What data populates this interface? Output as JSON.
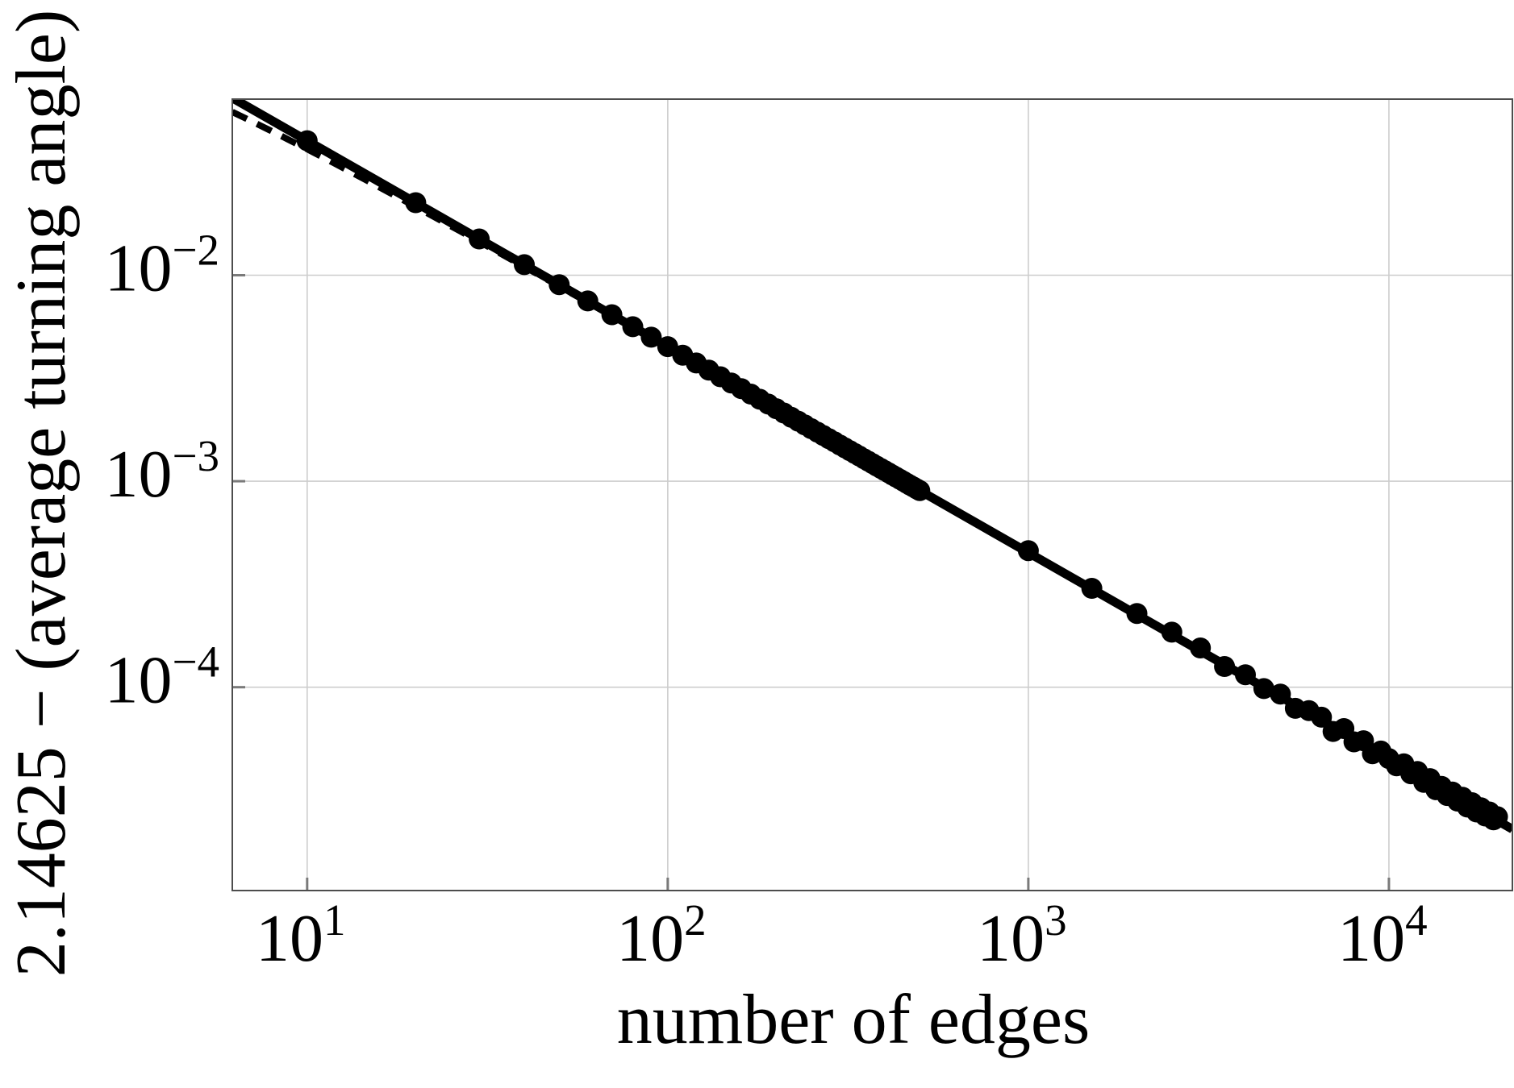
{
  "figure": {
    "title": "",
    "background": "#ffffff"
  },
  "chart_data": {
    "type": "scatter",
    "xscale": "log",
    "yscale": "log",
    "xlabel": "number of edges",
    "ylabel": "2.14625 − (average turning angle)",
    "xlim": [
      6.2,
      22000
    ],
    "ylim": [
      1.03e-05,
      0.0716
    ],
    "grid": true,
    "legend": "none",
    "colors": {
      "points": "#000000",
      "solid_line": "#000000",
      "dashed_line": "#000000",
      "grid": "#cdcdcd",
      "axis_frame": "#4d4d4d",
      "tick": "#7a7a7a",
      "tick_label": "#000000"
    },
    "xticks": [
      {
        "value": 10,
        "base": "10",
        "exp": "1"
      },
      {
        "value": 100,
        "base": "10",
        "exp": "2"
      },
      {
        "value": 1000,
        "base": "10",
        "exp": "3"
      },
      {
        "value": 10000,
        "base": "10",
        "exp": "4"
      }
    ],
    "yticks": [
      {
        "value": 0.01,
        "base": "10",
        "exp": "−2"
      },
      {
        "value": 0.001,
        "base": "10",
        "exp": "−3"
      },
      {
        "value": 0.0001,
        "base": "10",
        "exp": "−4"
      }
    ],
    "lines": {
      "fit": {
        "style": "solid",
        "coefficient": 0.45,
        "exponent": -1,
        "width": 11
      },
      "reference": {
        "style": "dashed",
        "coefficient": 0.45,
        "exponent": -1,
        "finite_size_correction": -0.9,
        "width": 8,
        "dash": [
          20,
          14
        ]
      }
    },
    "points": [
      [
        10,
        0.045
      ],
      [
        20,
        0.0225
      ],
      [
        30,
        0.015
      ],
      [
        40,
        0.01125
      ],
      [
        50,
        0.009
      ],
      [
        60,
        0.0075
      ],
      [
        70,
        0.006429
      ],
      [
        80,
        0.005625
      ],
      [
        90,
        0.005
      ],
      [
        100,
        0.0045
      ],
      [
        110,
        0.004091
      ],
      [
        120,
        0.00375
      ],
      [
        130,
        0.003462
      ],
      [
        140,
        0.003214
      ],
      [
        150,
        0.003
      ],
      [
        160,
        0.002813
      ],
      [
        170,
        0.002647
      ],
      [
        180,
        0.0025
      ],
      [
        190,
        0.002368
      ],
      [
        200,
        0.00225
      ],
      [
        210,
        0.002143
      ],
      [
        220,
        0.002045
      ],
      [
        230,
        0.001957
      ],
      [
        240,
        0.001875
      ],
      [
        250,
        0.0018
      ],
      [
        260,
        0.001731
      ],
      [
        270,
        0.001667
      ],
      [
        280,
        0.001607
      ],
      [
        290,
        0.001552
      ],
      [
        300,
        0.0015
      ],
      [
        310,
        0.001452
      ],
      [
        320,
        0.001406
      ],
      [
        330,
        0.001364
      ],
      [
        340,
        0.001324
      ],
      [
        350,
        0.001286
      ],
      [
        360,
        0.00125
      ],
      [
        370,
        0.001216
      ],
      [
        380,
        0.001184
      ],
      [
        390,
        0.001154
      ],
      [
        400,
        0.001125
      ],
      [
        410,
        0.001098
      ],
      [
        420,
        0.001071
      ],
      [
        430,
        0.001047
      ],
      [
        440,
        0.001023
      ],
      [
        450,
        0.001
      ],
      [
        460,
        0.000978
      ],
      [
        470,
        0.000957
      ],
      [
        480,
        0.000937
      ],
      [
        490,
        0.000918
      ],
      [
        500,
        0.0009
      ],
      [
        1000,
        0.00046
      ],
      [
        1500,
        0.000302
      ],
      [
        2000,
        0.000228
      ],
      [
        2500,
        0.000185
      ],
      [
        3000,
        0.000155
      ],
      [
        3500,
        0.000126
      ],
      [
        4000,
        0.000115
      ],
      [
        4500,
        9.85e-05
      ],
      [
        5000,
        9.25e-05
      ],
      [
        5500,
        7.9e-05
      ],
      [
        6000,
        7.7e-05
      ],
      [
        6500,
        7.15e-05
      ],
      [
        7000,
        6.1e-05
      ],
      [
        7500,
        6.3e-05
      ],
      [
        8000,
        5.43e-05
      ],
      [
        8500,
        5.5e-05
      ],
      [
        9000,
        4.75e-05
      ],
      [
        9500,
        4.9e-05
      ],
      [
        10000,
        4.5e-05
      ],
      [
        10500,
        4.15e-05
      ],
      [
        11000,
        4.25e-05
      ],
      [
        11500,
        3.8e-05
      ],
      [
        12000,
        3.9e-05
      ],
      [
        12500,
        3.45e-05
      ],
      [
        13000,
        3.6e-05
      ],
      [
        13500,
        3.18e-05
      ],
      [
        14000,
        3.3e-05
      ],
      [
        14500,
        2.98e-05
      ],
      [
        15000,
        3.1e-05
      ],
      [
        15500,
        2.8e-05
      ],
      [
        16000,
        2.92e-05
      ],
      [
        16500,
        2.62e-05
      ],
      [
        17000,
        2.75e-05
      ],
      [
        17500,
        2.48e-05
      ],
      [
        18000,
        2.6e-05
      ],
      [
        18500,
        2.37e-05
      ],
      [
        19000,
        2.48e-05
      ],
      [
        19500,
        2.27e-05
      ],
      [
        20000,
        2.35e-05
      ]
    ],
    "point_radius": 13
  }
}
